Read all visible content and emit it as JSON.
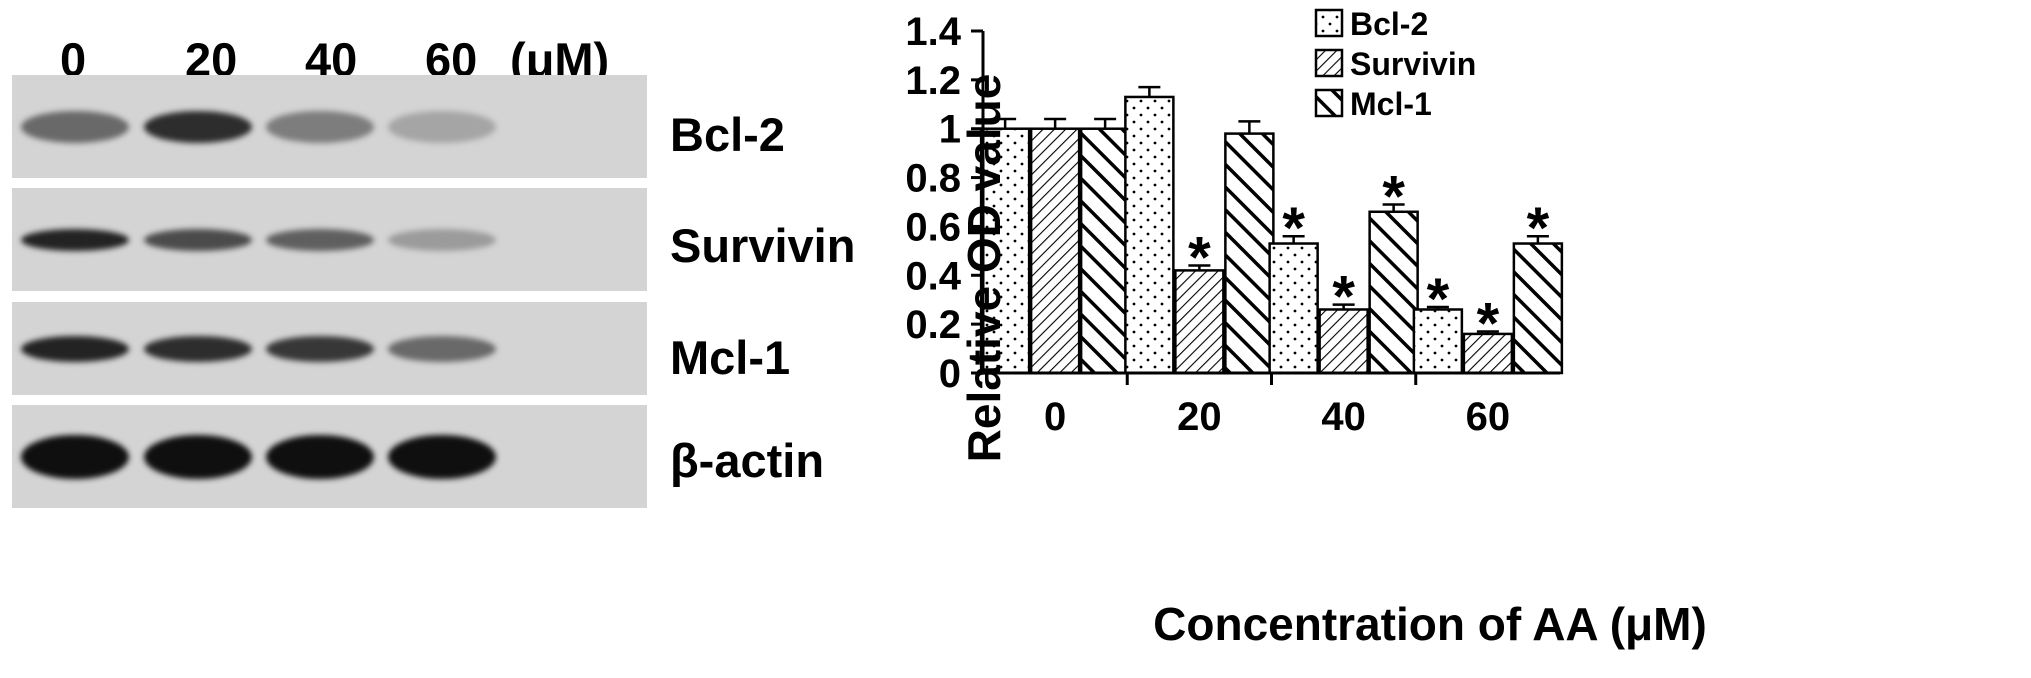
{
  "blot": {
    "concentrations": [
      "0",
      "20",
      "40",
      "60"
    ],
    "unit": "(μM)",
    "proteins": [
      "Bcl-2",
      "Survivin",
      "Mcl-1",
      "β-actin"
    ],
    "band_intensity": [
      [
        0.55,
        0.85,
        0.45,
        0.25
      ],
      [
        0.9,
        0.7,
        0.6,
        0.3
      ],
      [
        0.9,
        0.85,
        0.8,
        0.55
      ],
      [
        1.0,
        1.0,
        1.0,
        1.0
      ]
    ]
  },
  "chart_data": {
    "type": "bar",
    "categories": [
      "0",
      "20",
      "40",
      "60"
    ],
    "series": [
      {
        "name": "Bcl-2",
        "values": [
          1.0,
          1.13,
          0.53,
          0.26
        ],
        "errors": [
          0.04,
          0.04,
          0.03,
          0.01
        ],
        "significant": [
          false,
          false,
          true,
          true
        ],
        "pattern": "dots"
      },
      {
        "name": "Survivin",
        "values": [
          1.0,
          0.42,
          0.26,
          0.16
        ],
        "errors": [
          0.04,
          0.02,
          0.02,
          0.01
        ],
        "significant": [
          false,
          true,
          true,
          true
        ],
        "pattern": "hatch-fine"
      },
      {
        "name": "Mcl-1",
        "values": [
          1.0,
          0.98,
          0.66,
          0.53
        ],
        "errors": [
          0.04,
          0.05,
          0.03,
          0.03
        ],
        "significant": [
          false,
          false,
          true,
          true
        ],
        "pattern": "hatch-bold"
      }
    ],
    "yticks": [
      "0",
      "0.2",
      "0.4",
      "0.6",
      "0.8",
      "1",
      "1.2",
      "1.4"
    ],
    "ylim": [
      0,
      1.4
    ],
    "xlabel": "Concentration of AA (μM)",
    "ylabel": "Relative OD value",
    "significance_mark": "*",
    "legend": "top-right",
    "grid": false
  }
}
